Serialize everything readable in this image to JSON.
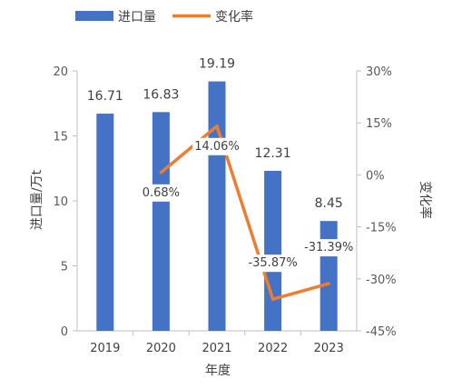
{
  "chart_data": {
    "type": "bar",
    "categories": [
      "2019",
      "2020",
      "2021",
      "2022",
      "2023"
    ],
    "xlabel": "年度",
    "series": [
      {
        "name": "进口量",
        "type": "bar",
        "axis": "left",
        "color": "#4472C4",
        "values": [
          16.71,
          16.83,
          19.19,
          12.31,
          8.45
        ],
        "labels": [
          "16.71",
          "16.83",
          "19.19",
          "12.31",
          "8.45"
        ]
      },
      {
        "name": "变化率",
        "type": "line",
        "axis": "right",
        "color": "#ED7D31",
        "values": [
          null,
          0.68,
          14.06,
          -35.87,
          -31.39
        ],
        "labels": [
          "",
          "0.68%",
          "14.06%",
          "-35.87%",
          "-31.39%"
        ]
      }
    ],
    "y_left": {
      "label": "进口量/万t",
      "range": [
        0,
        20
      ],
      "ticks": [
        0,
        5,
        10,
        15,
        20
      ],
      "tick_labels": [
        "0",
        "5",
        "10",
        "15",
        "20"
      ]
    },
    "y_right": {
      "label": "变化率",
      "range": [
        -45,
        30
      ],
      "ticks": [
        -45,
        -30,
        -15,
        0,
        15,
        30
      ],
      "tick_labels": [
        "-45%",
        "-30%",
        "-15%",
        "0%",
        "15%",
        "30%"
      ]
    },
    "grid": false,
    "legend_position": "top-left"
  }
}
